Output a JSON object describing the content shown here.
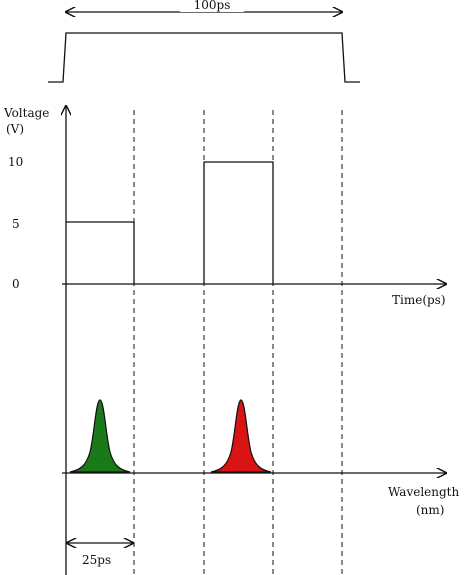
{
  "labels": {
    "top_span": "100ps",
    "voltage": "Voltage",
    "voltage_unit": "(V)",
    "time_axis": "Time(ps)",
    "wavelength": "Wavelength",
    "wavelength_unit": "(nm)",
    "bottom_span": "25ps"
  },
  "voltage_ticks": [
    "10",
    "5",
    "0"
  ],
  "voltage_levels": [
    {
      "slot": 1,
      "voltage": 5
    },
    {
      "slot": 3,
      "voltage": 10
    }
  ],
  "peaks": [
    {
      "slot": 1,
      "color": "#1a7a1a"
    },
    {
      "slot": 3,
      "color": "#d81414"
    }
  ]
}
